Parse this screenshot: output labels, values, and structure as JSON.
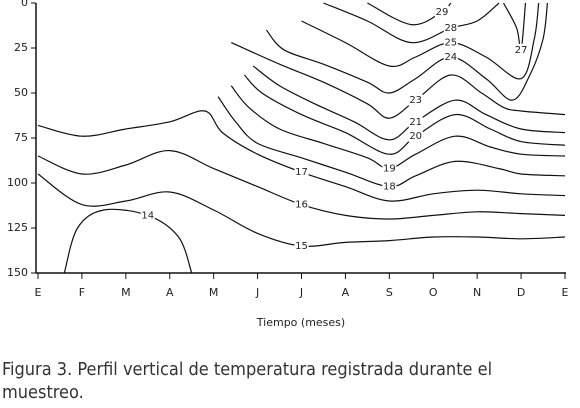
{
  "chart_data": {
    "type": "contour",
    "xlabel": "Tiempo (meses)",
    "categories": [
      "E",
      "F",
      "M",
      "A",
      "M",
      "J",
      "J",
      "A",
      "S",
      "O",
      "N",
      "D",
      "E"
    ],
    "ylim": [
      150,
      0
    ],
    "yticks": [
      0,
      25,
      50,
      75,
      100,
      125,
      150
    ],
    "color": "#111111",
    "contours": [
      {
        "level": 14,
        "x": [
          0.6,
          0.9,
          1.5,
          2.5,
          3.2,
          3.5
        ],
        "y": [
          150,
          125,
          115,
          118,
          130,
          150
        ]
      },
      {
        "level": 15,
        "x": [
          0,
          1,
          2,
          3,
          4,
          5,
          6,
          7,
          8,
          9,
          10,
          11,
          12
        ],
        "y": [
          95,
          112,
          110,
          105,
          115,
          128,
          135,
          133,
          132,
          130,
          130,
          131,
          130
        ]
      },
      {
        "level": 16,
        "x": [
          0,
          1,
          2,
          3,
          4,
          5,
          6,
          7,
          8,
          9,
          10,
          11,
          12
        ],
        "y": [
          85,
          95,
          90,
          82,
          92,
          102,
          112,
          118,
          120,
          118,
          116,
          117,
          118
        ]
      },
      {
        "level": 17,
        "x": [
          0,
          1,
          2,
          3,
          3.8,
          4.2,
          5,
          6,
          7,
          8,
          9,
          10,
          11,
          12
        ],
        "y": [
          68,
          74,
          70,
          66,
          60,
          72,
          84,
          94,
          102,
          110,
          106,
          104,
          106,
          107
        ]
      },
      {
        "level": 18,
        "x": [
          4.1,
          4.5,
          5,
          6,
          7,
          8,
          8.6,
          9.5,
          10.5,
          11,
          12
        ],
        "y": [
          52,
          66,
          78,
          86,
          94,
          102,
          96,
          88,
          92,
          95,
          96
        ]
      },
      {
        "level": 19,
        "x": [
          4.4,
          4.8,
          5.5,
          6.5,
          7.5,
          8,
          8.6,
          9.5,
          10.3,
          11,
          12
        ],
        "y": [
          46,
          58,
          70,
          78,
          86,
          92,
          84,
          74,
          80,
          84,
          85
        ]
      },
      {
        "level": 20,
        "x": [
          4.7,
          5.1,
          6,
          7,
          8,
          8.6,
          9.5,
          10.3,
          11,
          12
        ],
        "y": [
          40,
          50,
          62,
          72,
          84,
          74,
          62,
          70,
          77,
          79
        ]
      },
      {
        "level": 21,
        "x": [
          4.9,
          5.5,
          6.3,
          7.2,
          8,
          8.6,
          9.5,
          10.2,
          11,
          12
        ],
        "y": [
          35,
          46,
          56,
          66,
          76,
          66,
          54,
          62,
          70,
          72
        ]
      },
      {
        "level": 23,
        "x": [
          4.4,
          5.5,
          6.5,
          7.5,
          8,
          8.6,
          9.4,
          10.1,
          10.6,
          11,
          12
        ],
        "y": [
          22,
          34,
          44,
          56,
          64,
          54,
          40,
          50,
          58,
          60,
          62
        ]
      },
      {
        "level": 24,
        "x": [
          5.2,
          5.6,
          6.5,
          7.5,
          8,
          8.6,
          9.4,
          10.2,
          10.8,
          11.2,
          11.5,
          11.6
        ],
        "y": [
          15,
          26,
          34,
          44,
          50,
          42,
          30,
          42,
          54,
          40,
          20,
          0
        ]
      },
      {
        "level": 25,
        "x": [
          6,
          7,
          8,
          8.6,
          9.4,
          10.2,
          11,
          11.3,
          11.4
        ],
        "y": [
          10,
          22,
          35,
          30,
          22,
          30,
          42,
          20,
          0
        ]
      },
      {
        "level": 27,
        "x": [
          10.6,
          10.9,
          11,
          11.1
        ],
        "y": [
          0,
          14,
          26,
          0
        ]
      },
      {
        "level": 28,
        "x": [
          6.5,
          7.5,
          8.5,
          9.4,
          10,
          10.5
        ],
        "y": [
          0,
          10,
          22,
          14,
          10,
          0
        ]
      },
      {
        "level": 29,
        "x": [
          7.5,
          8.5,
          9.2,
          9.4
        ],
        "y": [
          0,
          12,
          5,
          0
        ]
      }
    ],
    "caption": "Figura 3. Perfil vertical de temperatura registrada durante el muestreo."
  }
}
